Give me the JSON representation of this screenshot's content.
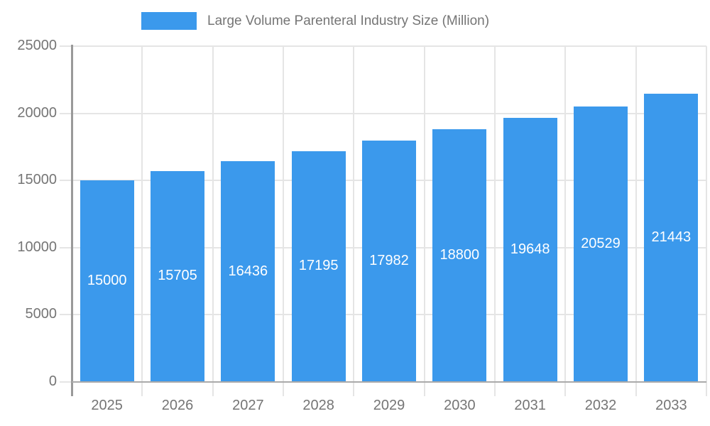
{
  "legend": {
    "label": "Large Volume Parenteral Industry Size (Million)"
  },
  "colors": {
    "bar": "#3B99EC",
    "grid": "#e5e5e5",
    "y_axis": "#999999",
    "baseline": "#aaaaaa",
    "tick_text": "#757575",
    "value_label": "#ffffff",
    "background": "#ffffff"
  },
  "chart_data": {
    "type": "bar",
    "title": "Large Volume Parenteral Industry Size (Million)",
    "categories": [
      "2025",
      "2026",
      "2027",
      "2028",
      "2029",
      "2030",
      "2031",
      "2032",
      "2033"
    ],
    "values": [
      15000,
      15705,
      16436,
      17195,
      17982,
      18800,
      19648,
      20529,
      21443
    ],
    "value_labels": [
      "15000",
      "15705",
      "16436",
      "17195",
      "17982",
      "18800",
      "19648",
      "20529",
      "21443"
    ],
    "xlabel": "",
    "ylabel": "",
    "ylim": [
      0,
      25000
    ],
    "ytick_step": 5000,
    "yticks": [
      0,
      5000,
      10000,
      15000,
      20000,
      25000
    ],
    "ytick_labels": [
      "0",
      "5000",
      "10000",
      "15000",
      "20000",
      "25000"
    ],
    "grid": true,
    "legend_position": "top",
    "value_labels_position": "center-of-bar"
  }
}
